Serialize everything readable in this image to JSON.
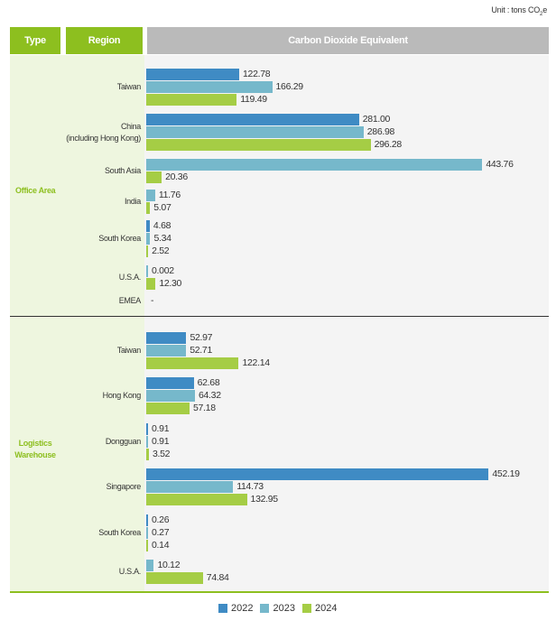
{
  "unit": {
    "prefix": "Unit : tons CO",
    "sub": "2",
    "suffix": "e"
  },
  "header": {
    "type": "Type",
    "region": "Region",
    "value": "Carbon Dioxide Equivalent"
  },
  "colors": {
    "2022": "#3f8bc4",
    "2023": "#76b8cb",
    "2024": "#a5cd45"
  },
  "chart_data": {
    "type": "bar",
    "orientation": "horizontal",
    "title": "Carbon Dioxide Equivalent",
    "unit": "tons CO2e",
    "series_names": [
      "2022",
      "2023",
      "2024"
    ],
    "legend": {
      "position": "bottom",
      "entries": [
        "2022",
        "2023",
        "2024"
      ]
    },
    "groups": [
      {
        "type": "Office Area",
        "regions": [
          {
            "name": "Taiwan",
            "values": {
              "2022": 122.78,
              "2023": 166.29,
              "2024": 119.49
            },
            "labels": {
              "2022": "122.78",
              "2023": "166.29",
              "2024": "119.49"
            }
          },
          {
            "name": "China\n(including Hong Kong)",
            "values": {
              "2022": 281.0,
              "2023": 286.98,
              "2024": 296.28
            },
            "labels": {
              "2022": "281.00",
              "2023": "286.98",
              "2024": "296.28"
            }
          },
          {
            "name": "South Asia",
            "values": {
              "2023": 443.76,
              "2024": 20.36
            },
            "labels": {
              "2023": "443.76",
              "2024": "20.36"
            }
          },
          {
            "name": "India",
            "values": {
              "2023": 11.76,
              "2024": 5.07
            },
            "labels": {
              "2023": "11.76",
              "2024": "5.07"
            }
          },
          {
            "name": "South Korea",
            "values": {
              "2022": 4.68,
              "2023": 5.34,
              "2024": 2.52
            },
            "labels": {
              "2022": "4.68",
              "2023": "5.34",
              "2024": "2.52"
            }
          },
          {
            "name": "U.S.A.",
            "values": {
              "2023": 0.002,
              "2024": 12.3
            },
            "labels": {
              "2023": "0.002",
              "2024": "12.30"
            }
          },
          {
            "name": "EMEA",
            "values": {},
            "labels": {},
            "empty_label": "-"
          }
        ]
      },
      {
        "type": "Logistics\nWarehouse",
        "regions": [
          {
            "name": "Taiwan",
            "values": {
              "2022": 52.97,
              "2023": 52.71,
              "2024": 122.14
            },
            "labels": {
              "2022": "52.97",
              "2023": "52.71",
              "2024": "122.14"
            }
          },
          {
            "name": "Hong Kong",
            "values": {
              "2022": 62.68,
              "2023": 64.32,
              "2024": 57.18
            },
            "labels": {
              "2022": "62.68",
              "2023": "64.32",
              "2024": "57.18"
            }
          },
          {
            "name": "Dongguan",
            "values": {
              "2022": 0.91,
              "2023": 0.91,
              "2024": 3.52
            },
            "labels": {
              "2022": "0.91",
              "2023": "0.91",
              "2024": "3.52"
            }
          },
          {
            "name": "Singapore",
            "values": {
              "2022": 452.19,
              "2023": 114.73,
              "2024": 132.95
            },
            "labels": {
              "2022": "452.19",
              "2023": "114.73",
              "2024": "132.95"
            }
          },
          {
            "name": "South Korea",
            "values": {
              "2022": 0.26,
              "2023": 0.27,
              "2024": 0.14
            },
            "labels": {
              "2022": "0.26",
              "2023": "0.27",
              "2024": "0.14"
            }
          },
          {
            "name": "U.S.A.",
            "values": {
              "2023": 10.12,
              "2024": 74.84
            },
            "labels": {
              "2023": "10.12",
              "2024": "74.84"
            }
          }
        ]
      }
    ]
  }
}
